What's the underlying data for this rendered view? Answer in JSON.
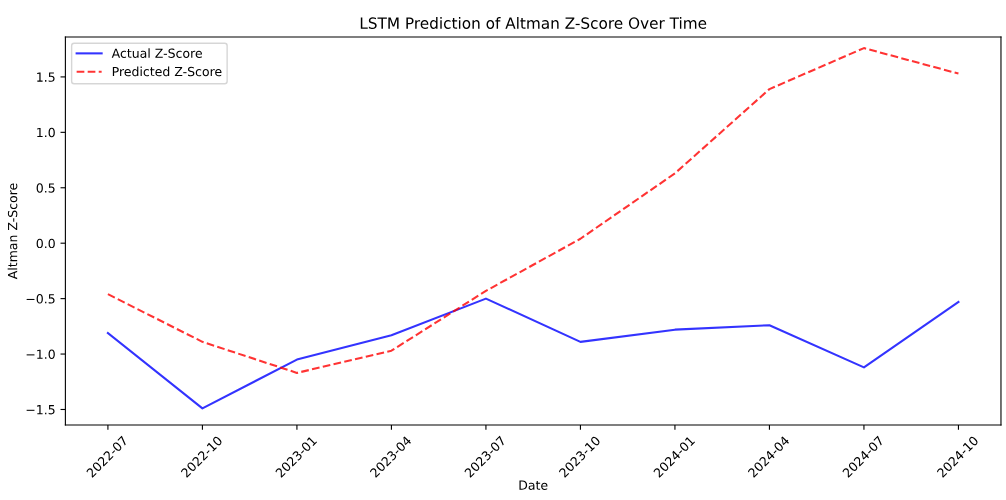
{
  "chart_data": {
    "type": "line",
    "title": "LSTM Prediction of Altman Z-Score Over Time",
    "xlabel": "Date",
    "ylabel": "Altman Z-Score",
    "categories": [
      "2022-07",
      "2022-10",
      "2023-01",
      "2023-04",
      "2023-07",
      "2023-10",
      "2024-01",
      "2024-04",
      "2024-07",
      "2024-10"
    ],
    "series": [
      {
        "name": "Actual Z-Score",
        "color": "#0000ff",
        "line_style": "solid",
        "values": [
          -0.81,
          -1.49,
          -1.05,
          -0.83,
          -0.5,
          -0.89,
          -0.78,
          -0.74,
          -1.12,
          -0.53
        ]
      },
      {
        "name": "Predicted Z-Score",
        "color": "#ff0000",
        "line_style": "dashed",
        "values": [
          -0.46,
          -0.89,
          -1.17,
          -0.97,
          -0.43,
          0.04,
          0.63,
          1.39,
          1.76,
          1.53
        ]
      }
    ],
    "ylim": [
      -1.64,
      1.86
    ],
    "yticks": [
      {
        "value": -1.5,
        "label": "−1.5"
      },
      {
        "value": -1.0,
        "label": "−1.0"
      },
      {
        "value": -0.5,
        "label": "−0.5"
      },
      {
        "value": 0.0,
        "label": "0.0"
      },
      {
        "value": 0.5,
        "label": "0.5"
      },
      {
        "value": 1.0,
        "label": "1.0"
      },
      {
        "value": 1.5,
        "label": "1.5"
      }
    ],
    "grid": false,
    "legend": "top left",
    "marker": "none"
  }
}
